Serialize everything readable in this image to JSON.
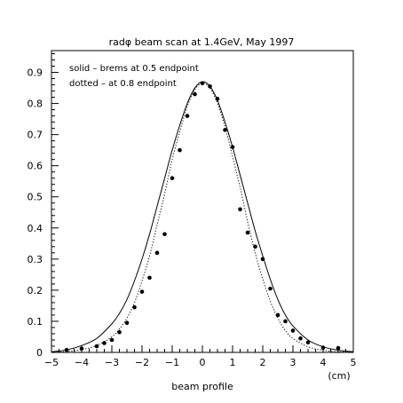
{
  "chart_data": {
    "type": "line",
    "title": "radφ beam scan at 1.4GeV, May 1997",
    "xlabel": "beam profile",
    "xunit": "(cm)",
    "ylabel": "",
    "xlim": [
      -5,
      5
    ],
    "ylim": [
      0,
      0.97
    ],
    "xticks": [
      -5,
      -4,
      -3,
      -2,
      -1,
      0,
      1,
      2,
      3,
      4,
      5
    ],
    "yticks": [
      0,
      0.1,
      0.2,
      0.3,
      0.4,
      0.5,
      0.6,
      0.7,
      0.8,
      0.9
    ],
    "annotations": [
      "solid – brems at 0.5 endpoint",
      "dotted – at 0.8 endpoint"
    ],
    "series": [
      {
        "style": "solid",
        "x": [
          -5,
          -4.5,
          -4,
          -3.5,
          -3,
          -2.75,
          -2.5,
          -2.25,
          -2,
          -1.75,
          -1.5,
          -1.25,
          -1,
          -0.75,
          -0.5,
          -0.25,
          0,
          0.25,
          0.5,
          0.75,
          1,
          1.25,
          1.5,
          1.75,
          2,
          2.25,
          2.5,
          2.75,
          3,
          3.5,
          4,
          4.5,
          5
        ],
        "y": [
          0.002,
          0.008,
          0.022,
          0.045,
          0.092,
          0.125,
          0.17,
          0.23,
          0.3,
          0.38,
          0.47,
          0.56,
          0.65,
          0.73,
          0.8,
          0.85,
          0.87,
          0.855,
          0.81,
          0.74,
          0.66,
          0.57,
          0.48,
          0.39,
          0.31,
          0.235,
          0.17,
          0.12,
          0.085,
          0.04,
          0.018,
          0.007,
          0.002
        ]
      },
      {
        "style": "dotted",
        "x": [
          -5,
          -4.5,
          -4,
          -3.5,
          -3,
          -2.75,
          -2.5,
          -2.25,
          -2,
          -1.75,
          -1.5,
          -1.25,
          -1,
          -0.75,
          -0.5,
          -0.25,
          0,
          0.25,
          0.5,
          0.75,
          1,
          1.25,
          1.5,
          1.75,
          2,
          2.25,
          2.5,
          2.75,
          3,
          3.5,
          4,
          4.5,
          5
        ],
        "y": [
          0.001,
          0.003,
          0.009,
          0.022,
          0.05,
          0.075,
          0.11,
          0.16,
          0.23,
          0.31,
          0.41,
          0.51,
          0.62,
          0.71,
          0.79,
          0.845,
          0.865,
          0.85,
          0.8,
          0.725,
          0.63,
          0.53,
          0.42,
          0.32,
          0.235,
          0.165,
          0.11,
          0.07,
          0.045,
          0.018,
          0.007,
          0.002,
          0.001
        ]
      },
      {
        "style": "markers",
        "x": [
          -4.5,
          -4.0,
          -3.5,
          -3.25,
          -3.0,
          -2.75,
          -2.5,
          -2.25,
          -2.0,
          -1.75,
          -1.5,
          -1.25,
          -1.0,
          -0.75,
          -0.5,
          -0.25,
          0.0,
          0.25,
          0.5,
          0.75,
          1.0,
          1.25,
          1.5,
          1.75,
          2.0,
          2.25,
          2.5,
          2.75,
          3.0,
          3.25,
          3.5,
          4.0,
          4.5
        ],
        "y": [
          0.008,
          0.012,
          0.02,
          0.03,
          0.04,
          0.065,
          0.095,
          0.145,
          0.195,
          0.24,
          0.32,
          0.38,
          0.56,
          0.65,
          0.76,
          0.83,
          0.865,
          0.855,
          0.815,
          0.715,
          0.66,
          0.46,
          0.385,
          0.34,
          0.3,
          0.205,
          0.12,
          0.1,
          0.07,
          0.045,
          0.032,
          0.015,
          0.014
        ]
      }
    ]
  }
}
